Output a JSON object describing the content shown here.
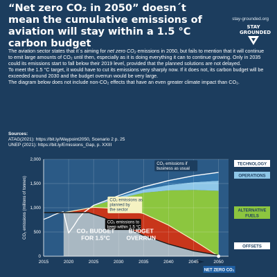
{
  "header": {
    "title": "“Net zero CO₂ in 2050” doesn´t mean the cumulative emissions of aviation will stay within a 1.5 °C carbon budget",
    "brand_url": "stay-grounded.org",
    "brand_name": "STAY GROUNDED"
  },
  "intro": {
    "p1_pre": "The aviation sector states that it´s aiming for ",
    "p1_em": "net zero CO₂",
    "p1_post": " emissions in 2050, but fails to mention that it will continue to emit large amounts of CO₂ until then, especially as it is doing everything it can to continue growing. Only in 2035 could its emissions start to fall below their 2019 level, provided that the planned solutions are not delayed.",
    "p2": "To meet the 1.5 °C target, it would have to cut its emissions very sharply now. If it does not, its carbon budget will be exceeded around 2030 and the budget overrun would be very large.",
    "p3": "The diagram below does not include non-CO₂ effects that have an even greater climate impact than CO₂."
  },
  "sources": {
    "heading": "Sources:",
    "items": [
      "ATAG(2021): https://bit.ly/Waypoint2050, Scenario 2 p. 25",
      "UNEP (2021): https://bit.ly/Emissions_Gap, p. XXIII"
    ]
  },
  "colors": {
    "background": "#1c3d5e",
    "technology": "#2f6fa5",
    "operations": "#8ec7e8",
    "alternative_fuels": "#8cc63f",
    "offsets": "#9bb0be",
    "budget": "#a9b8c2",
    "overrun": "#c8361b",
    "bau_line": "#ffffff",
    "planned_line": "#f5f2c2",
    "onepointfive_line": "#1a1a1a",
    "pill_bg": "#ffffff",
    "pill_text": "#1c3d5e",
    "netzero_bg": "#1f5fa3"
  },
  "chart_data": {
    "type": "area",
    "ylabel": "CO₂ emissions (millions of tonnes)",
    "xlim": [
      2015,
      2052
    ],
    "ylim": [
      0,
      2000
    ],
    "x_ticks": [
      2015,
      2020,
      2025,
      2030,
      2035,
      2040,
      2045,
      2050
    ],
    "y_ticks": [
      0,
      500,
      1000,
      1500,
      2000
    ],
    "y_tick_labels": [
      "0",
      "500",
      "1,000",
      "1,500",
      "2,000"
    ],
    "grid": true,
    "series": [
      {
        "key": "bau",
        "name": "CO₂ emissions if business as usual",
        "x": [
          2019,
          2020,
          2021,
          2022,
          2023,
          2025,
          2030,
          2035,
          2040,
          2045,
          2050
        ],
        "y": [
          900,
          480,
          620,
          780,
          900,
          1050,
          1250,
          1430,
          1560,
          1660,
          1730
        ]
      },
      {
        "key": "planned",
        "name": "CO₂ emissions as planned by the sector",
        "x": [
          2019,
          2025,
          2030,
          2035,
          2040,
          2045,
          2050
        ],
        "y": [
          900,
          1010,
          980,
          880,
          640,
          330,
          0
        ]
      },
      {
        "key": "onepointfive",
        "name": "CO₂ emissions to keep within 1.5 °C",
        "x": [
          2015,
          2019,
          2022,
          2024,
          2027,
          2030,
          2035,
          2040,
          2045,
          2050
        ],
        "y": [
          900,
          900,
          900,
          900,
          800,
          660,
          430,
          250,
          110,
          20
        ]
      },
      {
        "key": "history",
        "name": "",
        "x": [
          2015,
          2016,
          2017,
          2018,
          2019
        ],
        "y": [
          760,
          800,
          850,
          890,
          920
        ]
      }
    ],
    "regions": [
      {
        "label": "TECHNOLOGY"
      },
      {
        "label": "OPERATIONS"
      },
      {
        "label": "ALTERNATIVE FUELS"
      },
      {
        "label": "OFFSETS"
      },
      {
        "label": "CO₂ BUDGET FOR 1.5°C"
      },
      {
        "label": "BUDGET OVERRUN"
      }
    ],
    "badge": "NET ZERO CO₂",
    "badge_year": 2050
  }
}
